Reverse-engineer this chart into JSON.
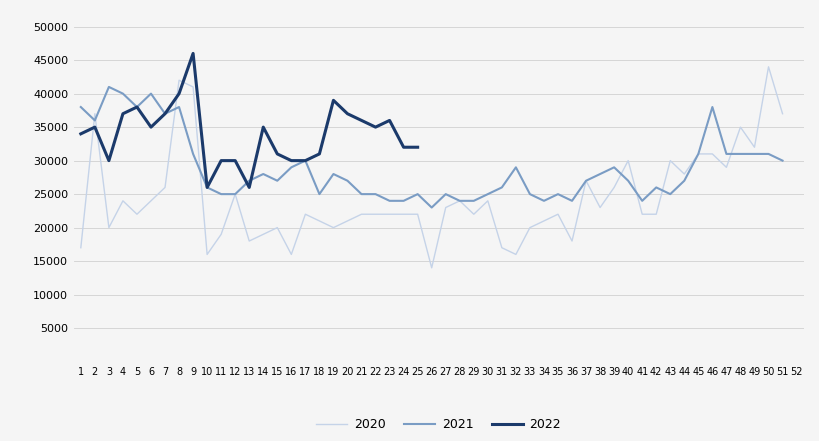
{
  "weeks": [
    1,
    2,
    3,
    4,
    5,
    6,
    7,
    8,
    9,
    10,
    11,
    12,
    13,
    14,
    15,
    16,
    17,
    18,
    19,
    20,
    21,
    22,
    23,
    24,
    25,
    26,
    27,
    28,
    29,
    30,
    31,
    32,
    33,
    34,
    35,
    36,
    37,
    38,
    39,
    40,
    41,
    42,
    43,
    44,
    45,
    46,
    47,
    48,
    49,
    50,
    51,
    52
  ],
  "y2020": [
    17000,
    37000,
    20000,
    24000,
    22000,
    24000,
    26000,
    42000,
    41000,
    16000,
    19000,
    25000,
    18000,
    19000,
    20000,
    16000,
    22000,
    21000,
    20000,
    21000,
    22000,
    22000,
    22000,
    22000,
    22000,
    14000,
    23000,
    24000,
    22000,
    24000,
    17000,
    16000,
    20000,
    21000,
    22000,
    18000,
    27000,
    23000,
    26000,
    30000,
    22000,
    22000,
    30000,
    28000,
    31000,
    31000,
    29000,
    35000,
    32000,
    44000,
    37000,
    null
  ],
  "y2021": [
    38000,
    36000,
    41000,
    40000,
    38000,
    40000,
    37000,
    38000,
    31000,
    26000,
    25000,
    25000,
    27000,
    28000,
    27000,
    29000,
    30000,
    25000,
    28000,
    27000,
    25000,
    25000,
    24000,
    24000,
    25000,
    23000,
    25000,
    24000,
    24000,
    25000,
    26000,
    29000,
    25000,
    24000,
    25000,
    24000,
    27000,
    28000,
    29000,
    27000,
    24000,
    26000,
    25000,
    27000,
    31000,
    38000,
    31000,
    31000,
    31000,
    31000,
    30000,
    null
  ],
  "y2022": [
    34000,
    35000,
    30000,
    37000,
    38000,
    35000,
    37000,
    40000,
    46000,
    26000,
    30000,
    30000,
    26000,
    35000,
    31000,
    30000,
    30000,
    31000,
    39000,
    37000,
    36000,
    35000,
    36000,
    32000,
    32000,
    null,
    null,
    null,
    null,
    null,
    null,
    null,
    null,
    null,
    null,
    null,
    null,
    null,
    null,
    null,
    null,
    null,
    null,
    null,
    null,
    null,
    null,
    null,
    null,
    null,
    null,
    null
  ],
  "color_2020": "#c5d3e8",
  "color_2021": "#7a9cc4",
  "color_2022": "#1b3a6b",
  "linewidth_2020": 1.0,
  "linewidth_2021": 1.5,
  "linewidth_2022": 2.2,
  "ylim": [
    0,
    52000
  ],
  "yticks": [
    5000,
    10000,
    15000,
    20000,
    25000,
    30000,
    35000,
    40000,
    45000,
    50000
  ],
  "background_color": "#f5f5f5",
  "legend_labels": [
    "2020",
    "2021",
    "2022"
  ]
}
